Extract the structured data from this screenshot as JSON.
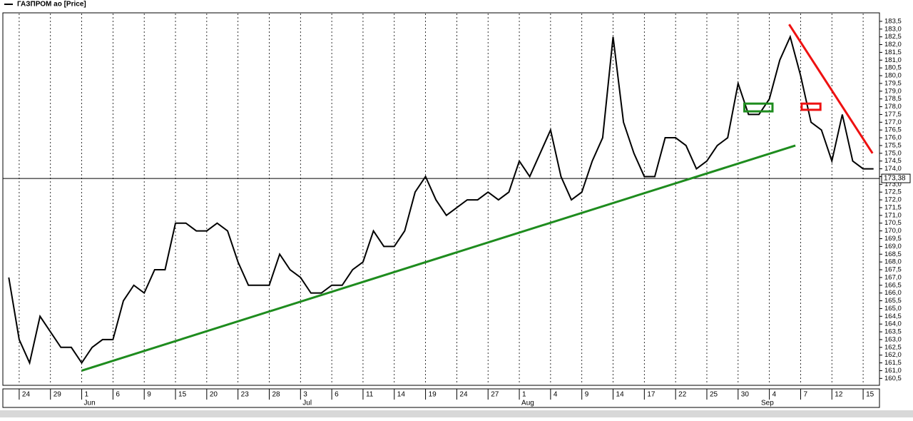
{
  "chart_data": {
    "type": "line",
    "series": [
      {
        "name": "ГАЗПРОМ ао [Price]",
        "color": "#000000",
        "values": [
          167,
          163,
          161.5,
          164.5,
          163.5,
          162.5,
          162.5,
          161.5,
          162.5,
          163,
          163,
          165.5,
          166.5,
          166,
          167.5,
          167.5,
          170.5,
          170.5,
          170,
          170,
          170.5,
          170,
          168,
          166.5,
          166.5,
          166.5,
          168.5,
          167.5,
          167,
          166,
          166,
          166.5,
          166.5,
          167.5,
          168,
          170,
          169,
          169,
          170,
          172.5,
          173.5,
          172,
          171,
          171.5,
          172,
          172,
          172.5,
          172,
          172.5,
          174.5,
          173.5,
          175,
          176.5,
          173.5,
          172,
          172.5,
          174.5,
          176,
          182.5,
          177,
          175,
          173.5,
          173.5,
          176,
          176,
          175.5,
          174,
          174.5,
          175.5,
          176,
          179.5,
          177.5,
          177.5,
          178.5,
          181,
          182.5,
          180,
          177,
          176.5,
          174.5,
          177.5,
          174.5,
          174,
          174
        ]
      }
    ],
    "categories": [
      null,
      "24",
      null,
      null,
      "29",
      null,
      null,
      "1",
      null,
      null,
      "6",
      null,
      null,
      "9",
      null,
      null,
      "15",
      null,
      null,
      "20",
      null,
      null,
      "23",
      null,
      null,
      "28",
      null,
      null,
      "3",
      null,
      null,
      "6",
      null,
      null,
      "11",
      null,
      null,
      "14",
      null,
      null,
      "19",
      null,
      null,
      "24",
      null,
      null,
      "27",
      null,
      null,
      "1",
      null,
      null,
      "4",
      null,
      null,
      "9",
      null,
      null,
      "14",
      null,
      null,
      "17",
      null,
      null,
      "22",
      null,
      null,
      "25",
      null,
      null,
      "30",
      null,
      null,
      "4",
      null,
      null,
      "7",
      null,
      null,
      "12",
      null,
      null,
      "15",
      null
    ],
    "month_labels": [
      null,
      null,
      null,
      null,
      null,
      null,
      null,
      "Jun",
      null,
      null,
      null,
      null,
      null,
      null,
      null,
      null,
      null,
      null,
      null,
      null,
      null,
      null,
      null,
      null,
      null,
      null,
      null,
      null,
      "Jul",
      null,
      null,
      null,
      null,
      null,
      null,
      null,
      null,
      null,
      null,
      null,
      null,
      null,
      null,
      null,
      null,
      null,
      null,
      null,
      null,
      "Aug",
      null,
      null,
      null,
      null,
      null,
      null,
      null,
      null,
      null,
      null,
      null,
      null,
      null,
      null,
      null,
      null,
      null,
      null,
      null,
      null,
      null,
      null,
      "Sep",
      null,
      null,
      null,
      null,
      null,
      null,
      null,
      null,
      null,
      null,
      null
    ],
    "ylim": [
      160.1,
      184.0
    ],
    "yticks": [
      {
        "value": 160.5,
        "label": "160,5"
      },
      {
        "value": 161,
        "label": "161,0"
      },
      {
        "value": 161.5,
        "label": "161,5"
      },
      {
        "value": 162,
        "label": "162,0"
      },
      {
        "value": 162.5,
        "label": "162,5"
      },
      {
        "value": 163,
        "label": "163,0"
      },
      {
        "value": 163.5,
        "label": "163,5"
      },
      {
        "value": 164,
        "label": "164,0"
      },
      {
        "value": 164.5,
        "label": "164,5"
      },
      {
        "value": 165,
        "label": "165,0"
      },
      {
        "value": 165.5,
        "label": "165,5"
      },
      {
        "value": 166,
        "label": "166,0"
      },
      {
        "value": 166.5,
        "label": "166,5"
      },
      {
        "value": 167,
        "label": "167,0"
      },
      {
        "value": 167.5,
        "label": "167,5"
      },
      {
        "value": 168,
        "label": "168,0"
      },
      {
        "value": 168.5,
        "label": "168,5"
      },
      {
        "value": 169,
        "label": "169,0"
      },
      {
        "value": 169.5,
        "label": "169,5"
      },
      {
        "value": 170,
        "label": "170,0"
      },
      {
        "value": 170.5,
        "label": "170,5"
      },
      {
        "value": 171,
        "label": "171,0"
      },
      {
        "value": 171.5,
        "label": "171,5"
      },
      {
        "value": 172,
        "label": "172,0"
      },
      {
        "value": 172.5,
        "label": "172,5"
      },
      {
        "value": 173,
        "label": "173,0"
      },
      {
        "value": 173.5,
        "label": "173,5"
      },
      {
        "value": 174,
        "label": "174,0"
      },
      {
        "value": 174.5,
        "label": "174,5"
      },
      {
        "value": 175,
        "label": "175,0"
      },
      {
        "value": 175.5,
        "label": "175,5"
      },
      {
        "value": 176,
        "label": "176,0"
      },
      {
        "value": 176.5,
        "label": "176,5"
      },
      {
        "value": 177,
        "label": "177,0"
      },
      {
        "value": 177.5,
        "label": "177,5"
      },
      {
        "value": 178,
        "label": "178,0"
      },
      {
        "value": 178.5,
        "label": "178,5"
      },
      {
        "value": 179,
        "label": "179,0"
      },
      {
        "value": 179.5,
        "label": "179,5"
      },
      {
        "value": 180,
        "label": "180,0"
      },
      {
        "value": 180.5,
        "label": "180,5"
      },
      {
        "value": 181,
        "label": "181,0"
      },
      {
        "value": 181.5,
        "label": "181,5"
      },
      {
        "value": 182,
        "label": "182,0"
      },
      {
        "value": 182.5,
        "label": "182,5"
      },
      {
        "value": 183,
        "label": "183,0"
      },
      {
        "value": 183.5,
        "label": "183,5"
      }
    ],
    "last_price": {
      "value": 173.38,
      "label": "173,38"
    },
    "trendlines": [
      {
        "x": [
          7,
          75.5
        ],
        "y": [
          161,
          175.5
        ],
        "color": "#1e8c1e"
      },
      {
        "x": [
          74.9,
          82.9
        ],
        "y": [
          183.3,
          175
        ],
        "color": "#ee1111"
      }
    ],
    "boxes": [
      {
        "x": [
          70.6,
          73.3
        ],
        "y": [
          177.7,
          178.2
        ],
        "color": "#1e8c1e"
      },
      {
        "x": [
          76.1,
          77.9
        ],
        "y": [
          177.8,
          178.2
        ],
        "color": "#ee1111"
      }
    ],
    "grid": true
  }
}
